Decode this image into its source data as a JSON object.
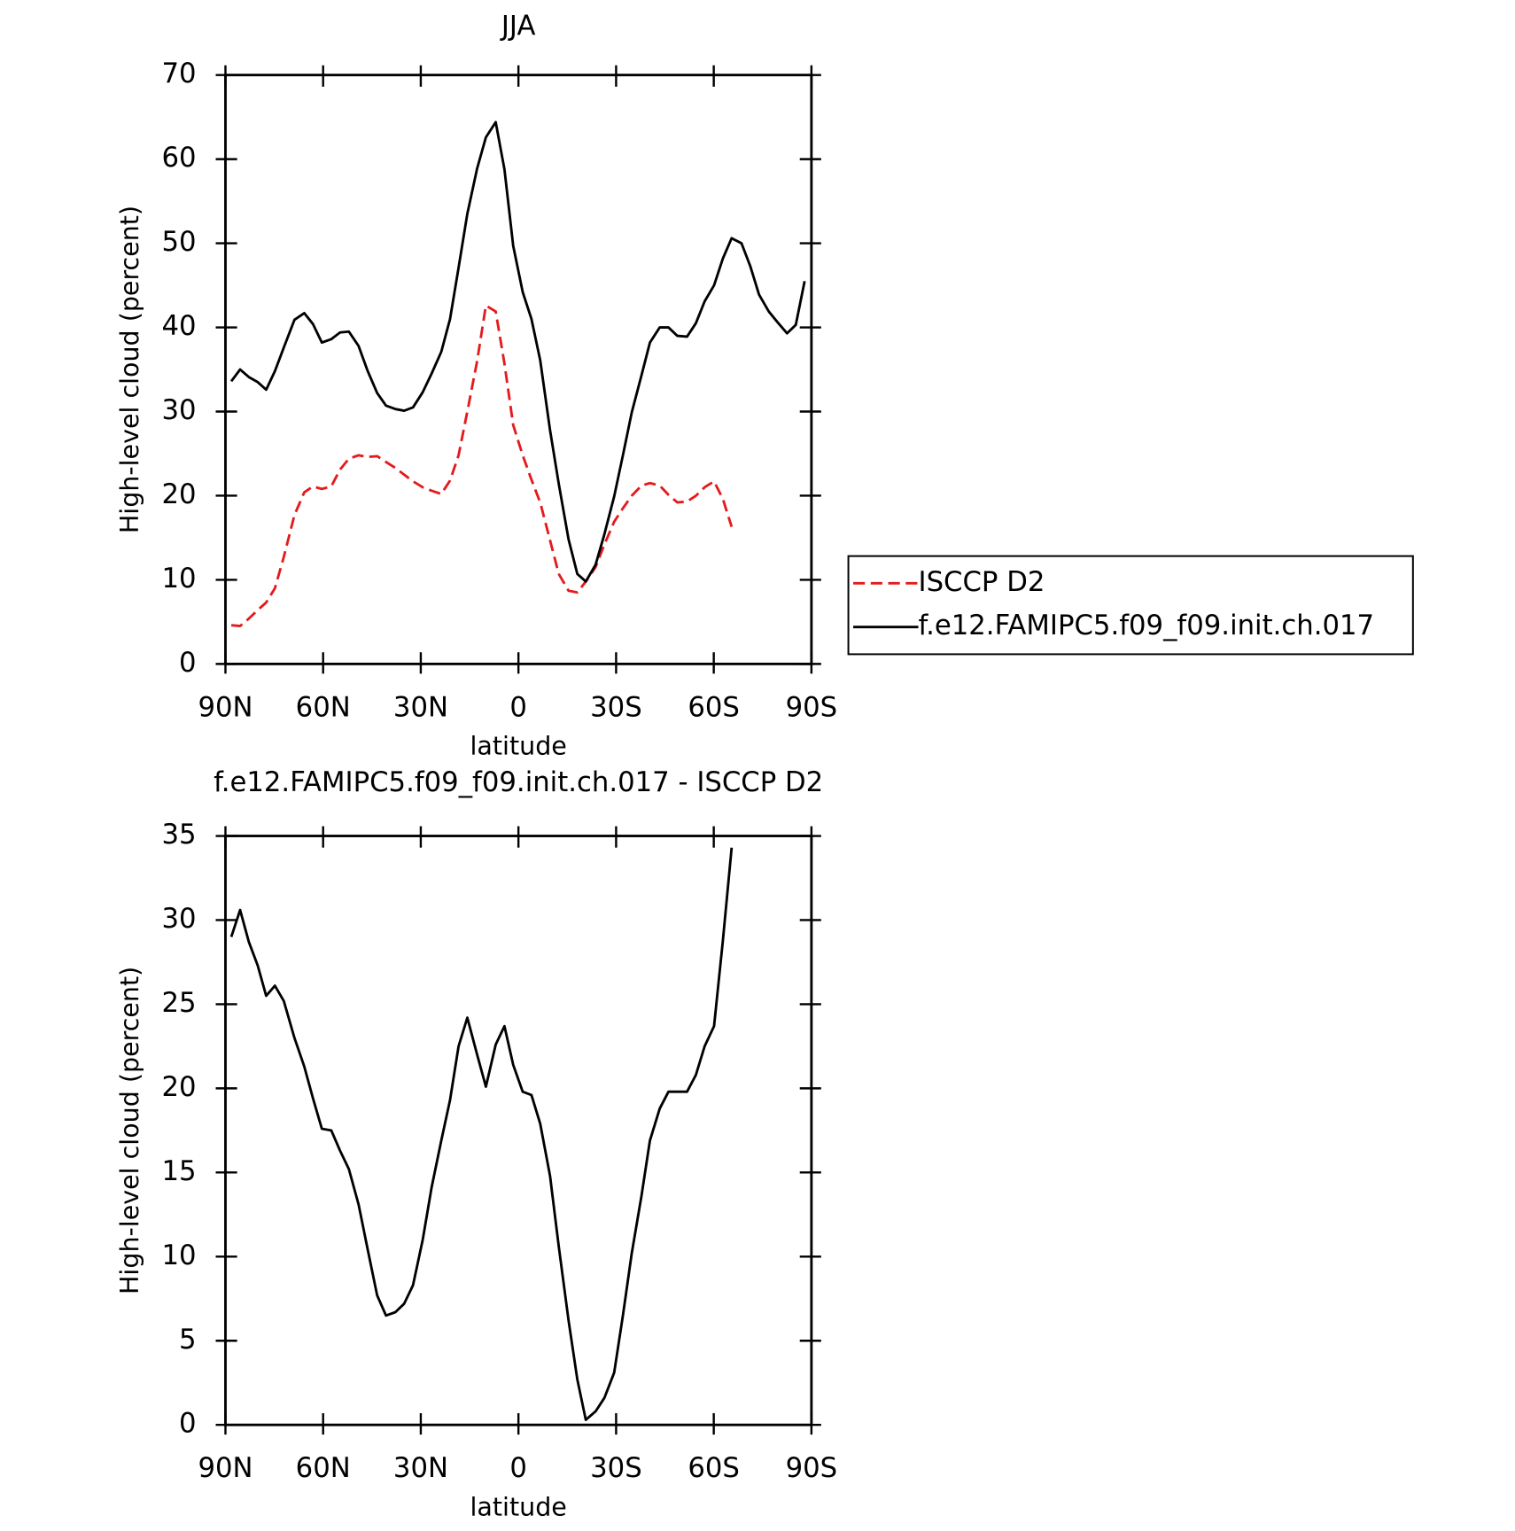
{
  "chart_data": [
    {
      "type": "line",
      "title": "JJA",
      "xlabel": "latitude",
      "ylabel": "High-level cloud (percent)",
      "xlim": [
        90,
        -90
      ],
      "ylim": [
        0,
        70
      ],
      "xticks": [
        {
          "value": 90,
          "label": "90N"
        },
        {
          "value": 60,
          "label": "60N"
        },
        {
          "value": 30,
          "label": "30N"
        },
        0,
        {
          "value": -30,
          "label": "30S"
        },
        {
          "value": -60,
          "label": "60S"
        },
        {
          "value": -90,
          "label": "90S"
        }
      ],
      "yticks": [
        0,
        10,
        20,
        30,
        40,
        50,
        60,
        70
      ],
      "legend": "right",
      "x": [
        88.2,
        85.5,
        82.8,
        80.1,
        77.5,
        74.8,
        72.1,
        68.8,
        65.8,
        63.1,
        60.4,
        57.5,
        54.8,
        52.1,
        49.1,
        46.4,
        43.4,
        40.7,
        37.8,
        35.1,
        32.4,
        29.4,
        26.7,
        23.7,
        21.0,
        18.4,
        15.7,
        12.7,
        10.0,
        7.0,
        4.3,
        1.6,
        -1.3,
        -4.0,
        -6.7,
        -9.7,
        -12.4,
        -15.4,
        -18.1,
        -20.7,
        -23.7,
        -26.4,
        -29.4,
        -32.1,
        -34.8,
        -37.8,
        -40.4,
        -43.4,
        -46.1,
        -48.8,
        -51.8,
        -54.5,
        -57.2,
        -60.1,
        -62.8,
        -65.5,
        -68.5,
        -71.2,
        -73.9,
        -76.9,
        -79.6,
        -82.5,
        -85.2,
        -87.9
      ],
      "series": [
        {
          "name": "ISCCP D2",
          "color": "#e41a1c",
          "linestyle": "dashed",
          "values": [
            4.6,
            4.5,
            5.4,
            6.4,
            7.3,
            9.0,
            12.7,
            17.7,
            20.4,
            21.1,
            20.8,
            21.1,
            23.1,
            24.4,
            24.8,
            24.6,
            24.7,
            24.0,
            23.3,
            22.5,
            21.7,
            21.0,
            20.6,
            20.2,
            21.8,
            24.8,
            30.0,
            36.0,
            42.6,
            41.9,
            35.7,
            28.4,
            24.8,
            21.9,
            19.2,
            14.7,
            10.7,
            8.7,
            8.5,
            9.8,
            11.5,
            14.2,
            16.9,
            18.5,
            20.0,
            21.2,
            21.5,
            21.2,
            20.1,
            19.2,
            19.3,
            20.0,
            21.0,
            21.7,
            19.6,
            16.3,
            null,
            null,
            null,
            null,
            null,
            null,
            null,
            null
          ]
        },
        {
          "name": "f.e12.FAMIPC5.f09_f09.init.ch.017",
          "color": "#000000",
          "linestyle": "solid",
          "values": [
            33.6,
            35.0,
            34.1,
            33.5,
            32.6,
            34.8,
            37.6,
            40.9,
            41.7,
            40.4,
            38.2,
            38.6,
            39.4,
            39.5,
            37.8,
            34.9,
            32.2,
            30.7,
            30.3,
            30.1,
            30.5,
            32.3,
            34.5,
            37.1,
            41.0,
            47.1,
            53.5,
            58.9,
            62.6,
            64.4,
            58.8,
            49.7,
            44.2,
            41.0,
            36.1,
            27.8,
            21.4,
            14.8,
            10.7,
            9.8,
            11.8,
            15.4,
            19.9,
            24.8,
            29.9,
            34.3,
            38.2,
            40.0,
            40.0,
            39.0,
            38.9,
            40.5,
            43.1,
            45.0,
            48.2,
            50.6,
            50.0,
            47.3,
            43.9,
            41.9,
            40.6,
            39.3,
            40.3,
            45.5
          ]
        }
      ]
    },
    {
      "type": "line",
      "title": "f.e12.FAMIPC5.f09_f09.init.ch.017 - ISCCP D2",
      "xlabel": "latitude",
      "ylabel": "High-level cloud (percent)",
      "xlim": [
        90,
        -90
      ],
      "ylim": [
        0,
        35
      ],
      "xticks": [
        {
          "value": 90,
          "label": "90N"
        },
        {
          "value": 60,
          "label": "60N"
        },
        {
          "value": 30,
          "label": "30N"
        },
        0,
        {
          "value": -30,
          "label": "30S"
        },
        {
          "value": -60,
          "label": "60S"
        },
        {
          "value": -90,
          "label": "90S"
        }
      ],
      "yticks": [
        0,
        5,
        10,
        15,
        20,
        25,
        30,
        35
      ],
      "x": [
        88.2,
        85.5,
        82.8,
        80.1,
        77.5,
        74.8,
        72.1,
        68.8,
        65.8,
        63.1,
        60.4,
        57.5,
        54.8,
        52.1,
        49.1,
        46.4,
        43.4,
        40.7,
        37.8,
        35.1,
        32.4,
        29.4,
        26.7,
        23.7,
        21.0,
        18.4,
        15.7,
        12.7,
        10.0,
        7.0,
        4.3,
        1.6,
        -1.3,
        -4.0,
        -6.7,
        -9.7,
        -12.4,
        -15.4,
        -18.1,
        -20.7,
        -23.7,
        -26.4,
        -29.4,
        -32.1,
        -34.8,
        -37.8,
        -40.4,
        -43.4,
        -46.1,
        -48.8,
        -51.8,
        -54.5,
        -57.2,
        -60.1,
        -62.8,
        -65.5
      ],
      "series": [
        {
          "color": "#000000",
          "linestyle": "solid",
          "values": [
            29.0,
            30.6,
            28.7,
            27.3,
            25.5,
            26.1,
            25.2,
            23.0,
            21.3,
            19.4,
            17.6,
            17.5,
            16.3,
            15.2,
            13.1,
            10.5,
            7.7,
            6.5,
            6.7,
            7.2,
            8.3,
            11.0,
            14.1,
            16.9,
            19.3,
            22.5,
            24.2,
            22.0,
            20.1,
            22.6,
            23.7,
            21.4,
            19.8,
            19.6,
            17.9,
            14.8,
            10.6,
            6.2,
            2.7,
            0.3,
            0.8,
            1.6,
            3.1,
            6.5,
            10.2,
            13.6,
            16.9,
            18.8,
            19.8,
            19.8,
            19.8,
            20.8,
            22.5,
            23.7,
            28.8,
            34.3
          ]
        }
      ]
    }
  ]
}
